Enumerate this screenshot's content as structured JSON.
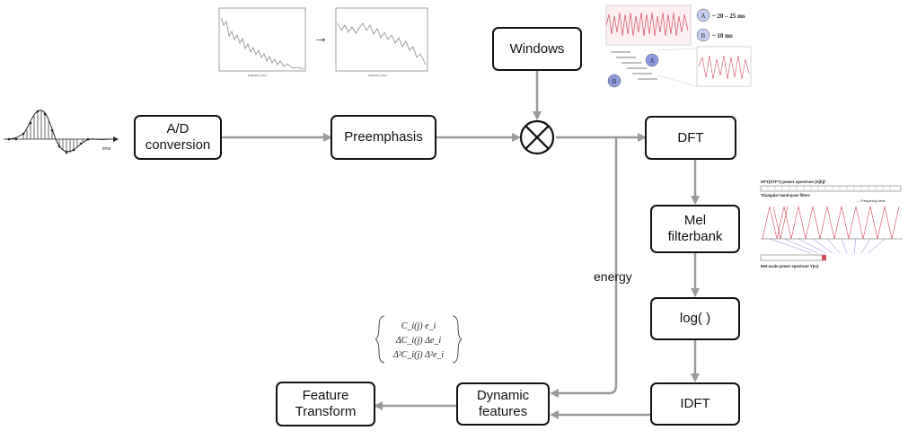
{
  "nodes": {
    "ad": "A/D\nconversion",
    "preemphasis": "Preemphasis",
    "windows": "Windows",
    "dft": "DFT",
    "mel": "Mel\nfilterbank",
    "log": "log( )",
    "idft": "IDFT",
    "dynamic": "Dynamic\nfeatures",
    "feature": "Feature\nTransform"
  },
  "edge_labels": {
    "energy": "energy"
  },
  "waveform": {
    "axis_label": "time"
  },
  "preemph_plots": {
    "arrow": "→",
    "xlabel": "Frequency (Hz)"
  },
  "window_legend": {
    "a_marker": "A",
    "a_text": "~ 20 – 25 ms",
    "b_marker": "B",
    "b_text": "~ 10 ms"
  },
  "mel_inset": {
    "title": "DFT(STFT) power spectrum  |X(k)|²",
    "filters": "Triangular band-pass filters",
    "freq": "→ Frequency bins",
    "output": "Mel-scale power spectrum   Y(m)"
  },
  "formula": {
    "row1": "C_i(j)  e_i",
    "row2": "ΔC_i(j)  Δe_i",
    "row3": "Δ²C_i(j)  Δ²e_i"
  },
  "colors": {
    "stroke": "#111111",
    "arrow": "#9a9a9a",
    "accent": "#d9485f",
    "marker": "#8e9be0"
  }
}
